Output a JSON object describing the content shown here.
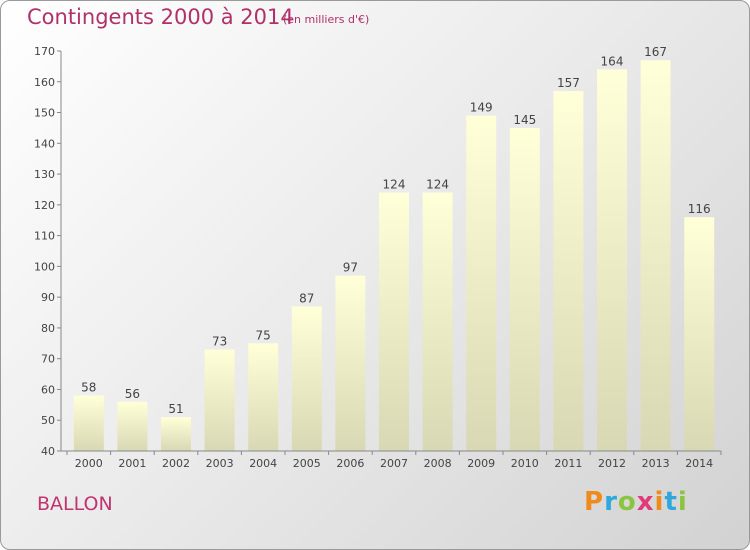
{
  "header": {
    "title": "Contingents 2000 à 2014",
    "subtitle": "(en milliers d'€)"
  },
  "footer": {
    "commune": "BALLON",
    "logo_text": "Proxiti"
  },
  "colors": {
    "accent": "#b0306a",
    "bar_top": "#ffffd8",
    "bar_bottom": "#d8d8b4"
  },
  "chart_data": {
    "type": "bar",
    "categories": [
      "2000",
      "2001",
      "2002",
      "2003",
      "2004",
      "2005",
      "2006",
      "2007",
      "2008",
      "2009",
      "2010",
      "2011",
      "2012",
      "2013",
      "2014"
    ],
    "values": [
      58,
      56,
      51,
      73,
      75,
      87,
      97,
      124,
      124,
      149,
      145,
      157,
      164,
      167,
      116
    ],
    "title": "Contingents 2000 à 2014",
    "subtitle": "(en milliers d'€)",
    "xlabel": "",
    "ylabel": "",
    "ylim": [
      40,
      170
    ],
    "yticks": [
      40,
      50,
      60,
      70,
      80,
      90,
      100,
      110,
      120,
      130,
      140,
      150,
      160,
      170
    ],
    "grid": false,
    "data_labels": true
  }
}
